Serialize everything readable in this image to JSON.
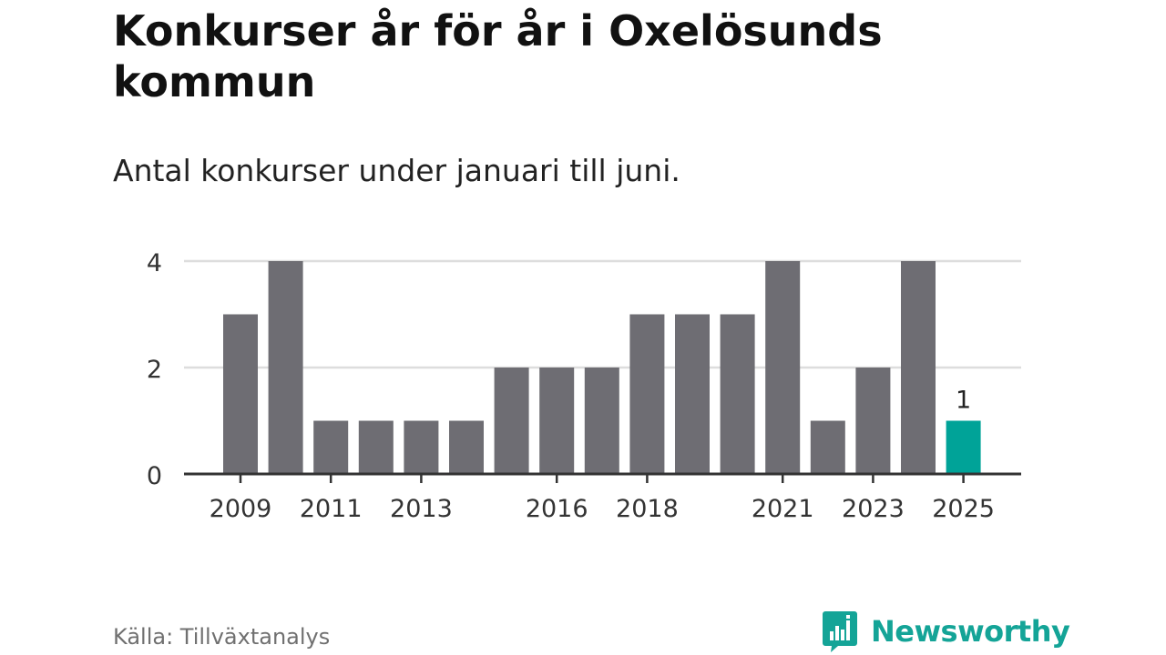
{
  "header": {
    "title": "Konkurser år för år i Oxelösunds kommun",
    "subtitle": "Antal konkurser under januari till juni."
  },
  "footer": {
    "source": "Källa: Tillväxtanalys",
    "brand": "Newsworthy",
    "brand_icon": "bar-chart-speech-bubble-icon",
    "brand_color": "#14a497"
  },
  "colors": {
    "bar": "#6e6d73",
    "highlight": "#00a398",
    "grid": "#dddddd",
    "axis": "#333333"
  },
  "chart_data": {
    "type": "bar",
    "categories": [
      "2009",
      "2010",
      "2011",
      "2012",
      "2013",
      "2014",
      "2015",
      "2016",
      "2017",
      "2018",
      "2019",
      "2020",
      "2021",
      "2022",
      "2023",
      "2024",
      "2025"
    ],
    "values": [
      3,
      4,
      1,
      1,
      1,
      1,
      2,
      2,
      2,
      3,
      3,
      3,
      4,
      1,
      2,
      4,
      1
    ],
    "x_tick_labels": [
      "2009",
      "2011",
      "2013",
      "2016",
      "2018",
      "2021",
      "2023",
      "2025"
    ],
    "y_ticks": [
      0,
      2,
      4
    ],
    "ylim": [
      0,
      4
    ],
    "highlight_category": "2025",
    "data_labels": [
      {
        "category": "2025",
        "text": "1"
      }
    ],
    "grid": true
  }
}
